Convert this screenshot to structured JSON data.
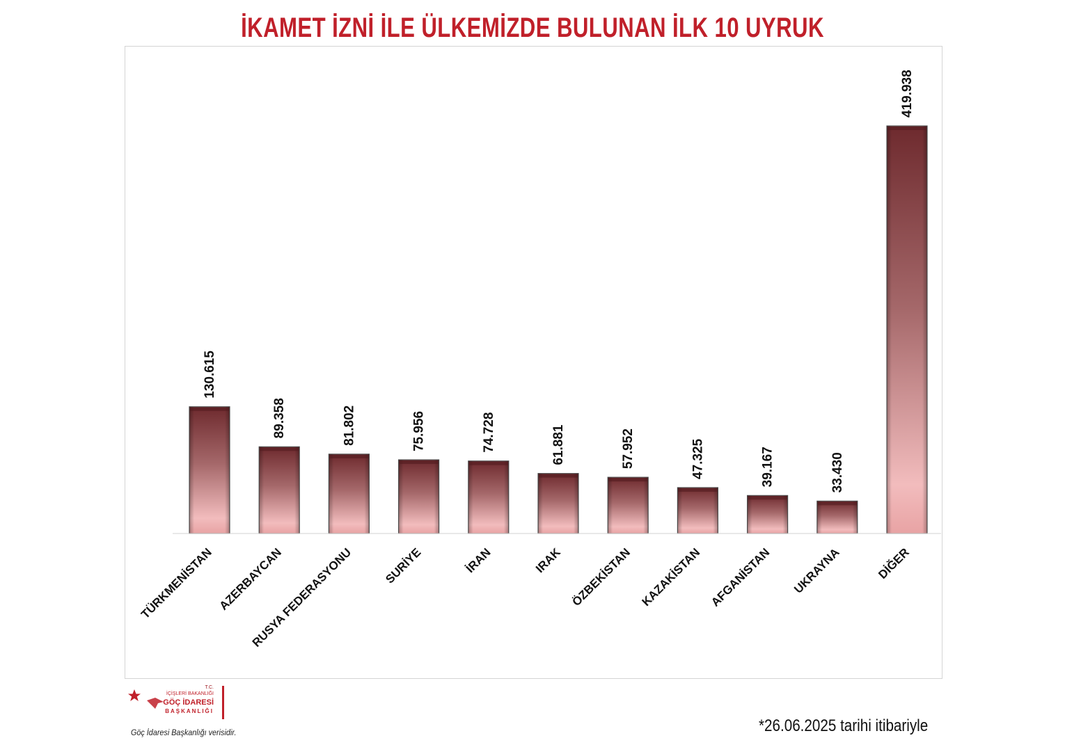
{
  "title": "İKAMET İZNİ İLE ÜLKEMİZDE BULUNAN İLK 10 UYRUK",
  "chart_data": {
    "type": "bar",
    "title": "İKAMET İZNİ İLE ÜLKEMİZDE BULUNAN İLK 10 UYRUK",
    "categories": [
      "TÜRKMENİSTAN",
      "AZERBAYCAN",
      "RUSYA FEDERASYONU",
      "SURİYE",
      "İRAN",
      "IRAK",
      "ÖZBEKİSTAN",
      "KAZAKİSTAN",
      "AFGANİSTAN",
      "UKRAYNA",
      "DİĞER"
    ],
    "values": [
      130615,
      89358,
      81802,
      75956,
      74728,
      61881,
      57952,
      47325,
      39167,
      33430,
      419938
    ],
    "value_labels": [
      "130.615",
      "89.358",
      "81.802",
      "75.956",
      "74.728",
      "61.881",
      "57.952",
      "47.325",
      "39.167",
      "33.430",
      "419.938"
    ],
    "ylim": [
      0,
      500000
    ],
    "grid": false,
    "legend": "none",
    "bar_color_top": "#6e2a2e",
    "bar_color_bottom": "#f2bcbd"
  },
  "logo": {
    "line1": "T.C.",
    "line2": "İÇİŞLERİ BAKANLIĞI",
    "line3": "GÖÇ İDARESİ",
    "line4": "BAŞKANLIĞI",
    "brand_color": "#c0202a"
  },
  "source_note": "Göç İdaresi Başkanlığı verisidir.",
  "date_note": "*26.06.2025 tarihi itibariyle"
}
